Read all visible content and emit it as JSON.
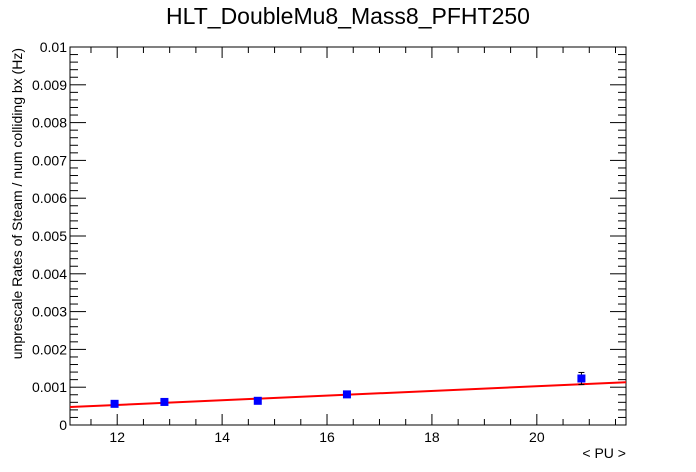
{
  "chart_data": {
    "type": "scatter",
    "title": "HLT_DoubleMu8_Mass8_PFHT250",
    "xlabel": "< PU >",
    "ylabel": "unprescale Rates of Steam / num colliding bx (Hz)",
    "xlim": [
      11.1,
      21.7
    ],
    "ylim": [
      0,
      0.01
    ],
    "x_ticks": [
      12,
      14,
      16,
      18,
      20
    ],
    "x_tick_labels": [
      "12",
      "14",
      "16",
      "18",
      "20"
    ],
    "y_ticks": [
      0,
      0.001,
      0.002,
      0.003,
      0.004,
      0.005,
      0.006,
      0.007,
      0.008,
      0.009,
      0.01
    ],
    "y_tick_labels": [
      "0",
      "0.001",
      "0.002",
      "0.003",
      "0.004",
      "0.005",
      "0.006",
      "0.007",
      "0.008",
      "0.009",
      "0.01"
    ],
    "grid": false,
    "series": [
      {
        "marker": "square",
        "color": "#0000ff",
        "points": [
          {
            "x": 11.95,
            "y": 0.00056,
            "yerr": 5e-05
          },
          {
            "x": 12.9,
            "y": 0.00061,
            "yerr": 5e-05
          },
          {
            "x": 14.68,
            "y": 0.00064,
            "yerr": 5e-05
          },
          {
            "x": 16.38,
            "y": 0.00081,
            "yerr": 6e-05
          },
          {
            "x": 20.85,
            "y": 0.00123,
            "yerr": 0.00016
          }
        ]
      }
    ],
    "fit": {
      "type": "line",
      "color": "#ff0000",
      "points": [
        [
          11.1,
          0.000475
        ],
        [
          21.7,
          0.00113
        ]
      ]
    }
  }
}
